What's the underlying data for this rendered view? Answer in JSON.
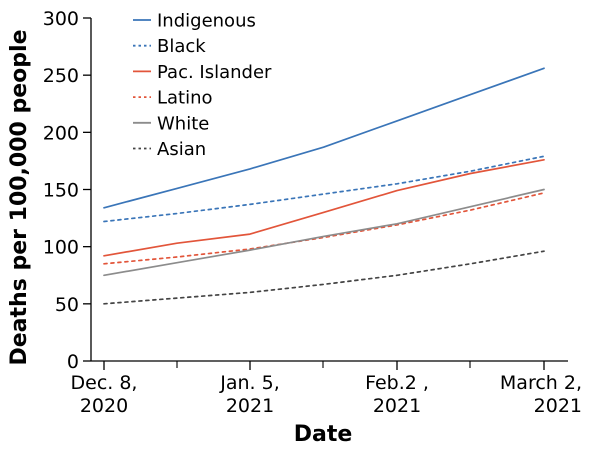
{
  "chart_data": {
    "type": "line",
    "xlabel": "Date",
    "ylabel": "Deaths per 100,000 people",
    "x": [
      "Dec. 8, 2020",
      "Jan. 5, 2021",
      "Feb.2 , 2021",
      "March 2, 2021"
    ],
    "x_tick_labels": [
      [
        "Dec. 8,",
        "2020"
      ],
      [
        "Jan. 5,",
        "2021"
      ],
      [
        "Feb.2 ,",
        "2021"
      ],
      [
        "March 2,",
        "2021"
      ]
    ],
    "ylim": [
      0,
      300
    ],
    "y_ticks": [
      0,
      50,
      100,
      150,
      200,
      250,
      300
    ],
    "grid": false,
    "legend_position": "top-left",
    "series": [
      {
        "name": "Indigenous",
        "color": "#3a75b8",
        "dash": "solid",
        "x": [
          0,
          0.5,
          1,
          1.5,
          2,
          2.5,
          3
        ],
        "values": [
          134,
          151,
          168,
          187,
          210,
          233,
          256
        ]
      },
      {
        "name": "Black",
        "color": "#3a75b8",
        "dash": "dotted",
        "x": [
          0,
          0.5,
          1,
          1.5,
          2,
          2.5,
          3
        ],
        "values": [
          122,
          129,
          137,
          146,
          155,
          166,
          179
        ]
      },
      {
        "name": "Pac. Islander",
        "color": "#e2553a",
        "dash": "solid",
        "x": [
          0,
          0.5,
          1,
          1.5,
          2,
          2.5,
          3
        ],
        "values": [
          92,
          103,
          111,
          130,
          149,
          164,
          176
        ]
      },
      {
        "name": "Latino",
        "color": "#e2553a",
        "dash": "dotted",
        "x": [
          0,
          0.5,
          1,
          1.5,
          2,
          2.5,
          3
        ],
        "values": [
          85,
          91,
          98,
          108,
          119,
          132,
          147
        ]
      },
      {
        "name": "White",
        "color": "#8c8c8c",
        "dash": "solid",
        "x": [
          0,
          0.5,
          1,
          1.5,
          2,
          2.5,
          3
        ],
        "values": [
          75,
          86,
          97,
          109,
          120,
          135,
          150
        ]
      },
      {
        "name": "Asian",
        "color": "#444444",
        "dash": "dotted",
        "x": [
          0,
          0.5,
          1,
          1.5,
          2,
          2.5,
          3
        ],
        "values": [
          50,
          55,
          60,
          67,
          75,
          85,
          96
        ]
      }
    ]
  }
}
